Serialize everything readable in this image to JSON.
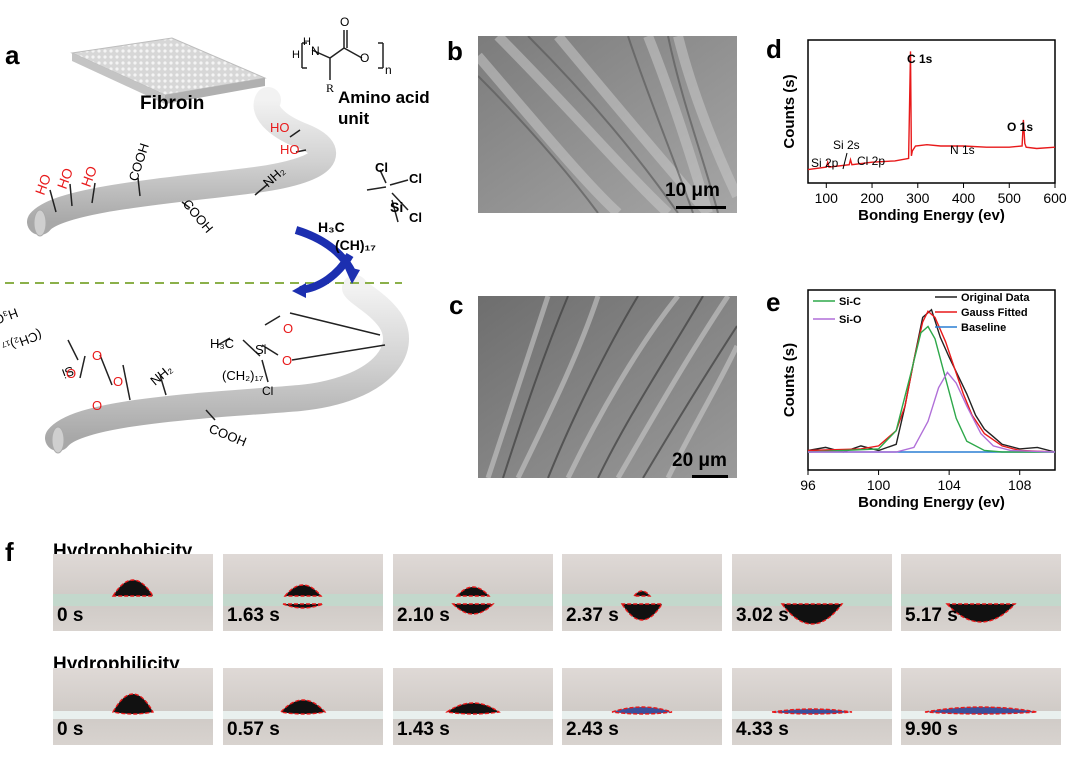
{
  "panels": {
    "a": "a",
    "b": "b",
    "c": "c",
    "d": "d",
    "e": "e",
    "f": "f"
  },
  "schematic": {
    "fibroin": "Fibroin",
    "amino_acid": "Amino acid unit",
    "amino_acid_line1": "Amino acid",
    "amino_acid_line2": "unit",
    "monomer_n": "n",
    "monomer_h": "H",
    "monomer_n_atom": "N",
    "monomer_r": "R",
    "monomer_o": "O",
    "ho": "HO",
    "cooh": "COOH",
    "nh2": "NH₂",
    "silane_h3c": "H₃C",
    "silane_chain": "(CH)₁₇",
    "silane_chain_bottom": "(CH₂)₁₇",
    "si": "Si",
    "cl": "Cl",
    "o": "O"
  },
  "sem": {
    "b_scale": "10 μm",
    "c_scale": "20 μm"
  },
  "chart_data": [
    {
      "type": "line",
      "panel": "d",
      "xlabel": "Bonding Energy (ev)",
      "ylabel": "Counts (s)",
      "xlim": [
        60,
        600
      ],
      "xticks": [
        100,
        200,
        300,
        400,
        500,
        600
      ],
      "series": [
        {
          "color": "#e8191a",
          "x": [
            60,
            100,
            103,
            106,
            150,
            153,
            156,
            200,
            250,
            280,
            284,
            286,
            288,
            295,
            320,
            350,
            400,
            450,
            500,
            528,
            531,
            534,
            537,
            560,
            600
          ],
          "y": [
            0.05,
            0.07,
            0.11,
            0.07,
            0.09,
            0.13,
            0.09,
            0.11,
            0.12,
            0.14,
            1.0,
            0.16,
            0.2,
            0.24,
            0.25,
            0.24,
            0.24,
            0.23,
            0.23,
            0.24,
            0.45,
            0.26,
            0.23,
            0.22,
            0.23
          ]
        }
      ],
      "annotations": [
        "C 1s",
        "Si 2s",
        "Si 2p",
        "Cl 2p",
        "N 1s",
        "O 1s"
      ]
    },
    {
      "type": "line",
      "panel": "e",
      "xlabel": "Bonding Energy (ev)",
      "ylabel": "Counts (s)",
      "xlim": [
        96,
        110
      ],
      "xticks": [
        96,
        100,
        104,
        108
      ],
      "legend": [
        "Original Data",
        "Gauss Fitted",
        "Baseline"
      ],
      "component_labels": [
        "Si-C",
        "Si-O"
      ],
      "series": [
        {
          "name": "Original Data",
          "color": "#222222",
          "x": [
            96,
            97,
            98,
            99,
            100,
            100.5,
            101,
            101.5,
            102,
            102.5,
            103,
            103.5,
            104,
            104.5,
            105,
            105.5,
            106,
            106.5,
            107,
            108,
            109,
            110
          ],
          "y": [
            0.01,
            0.03,
            0.0,
            0.04,
            0.01,
            0.03,
            0.05,
            0.3,
            0.6,
            0.88,
            0.93,
            0.75,
            0.62,
            0.5,
            0.38,
            0.24,
            0.15,
            0.1,
            0.05,
            0.02,
            0.03,
            0.0
          ]
        },
        {
          "name": "Gauss Fitted",
          "color": "#e8191a",
          "x": [
            96,
            99,
            100,
            101,
            101.5,
            102,
            102.5,
            102.8,
            103.2,
            103.8,
            104.3,
            104.8,
            105.3,
            106,
            107,
            108,
            110
          ],
          "y": [
            0.01,
            0.02,
            0.04,
            0.14,
            0.3,
            0.6,
            0.85,
            0.92,
            0.88,
            0.72,
            0.55,
            0.38,
            0.24,
            0.12,
            0.04,
            0.01,
            0.0
          ]
        },
        {
          "name": "Baseline",
          "color": "#2a7fd4",
          "x": [
            96,
            110
          ],
          "y": [
            0.0,
            0.0
          ]
        },
        {
          "name": "Si-C",
          "color": "#2ea84a",
          "x": [
            96,
            100,
            101,
            101.8,
            102.4,
            102.8,
            103.2,
            103.8,
            104.4,
            105,
            106,
            107,
            110
          ],
          "y": [
            0.0,
            0.02,
            0.14,
            0.5,
            0.78,
            0.82,
            0.74,
            0.48,
            0.22,
            0.07,
            0.01,
            0.0,
            0.0
          ]
        },
        {
          "name": "Si-O",
          "color": "#b06fd8",
          "x": [
            96,
            101,
            102,
            102.8,
            103.4,
            103.9,
            104.4,
            105,
            105.8,
            106.5,
            107.5,
            110
          ],
          "y": [
            0.0,
            0.0,
            0.03,
            0.2,
            0.42,
            0.52,
            0.45,
            0.3,
            0.12,
            0.04,
            0.01,
            0.0
          ]
        }
      ]
    }
  ],
  "wetting": {
    "row1_label": "Hydrophobicity",
    "row2_label": "Hydrophilicity",
    "row1_times": [
      "0 s",
      "1.63 s",
      "2.10 s",
      "2.37 s",
      "3.02 s",
      "5.17 s"
    ],
    "row2_times": [
      "0 s",
      "0.57 s",
      "1.43 s",
      "2.43 s",
      "4.33 s",
      "9.90 s"
    ]
  }
}
